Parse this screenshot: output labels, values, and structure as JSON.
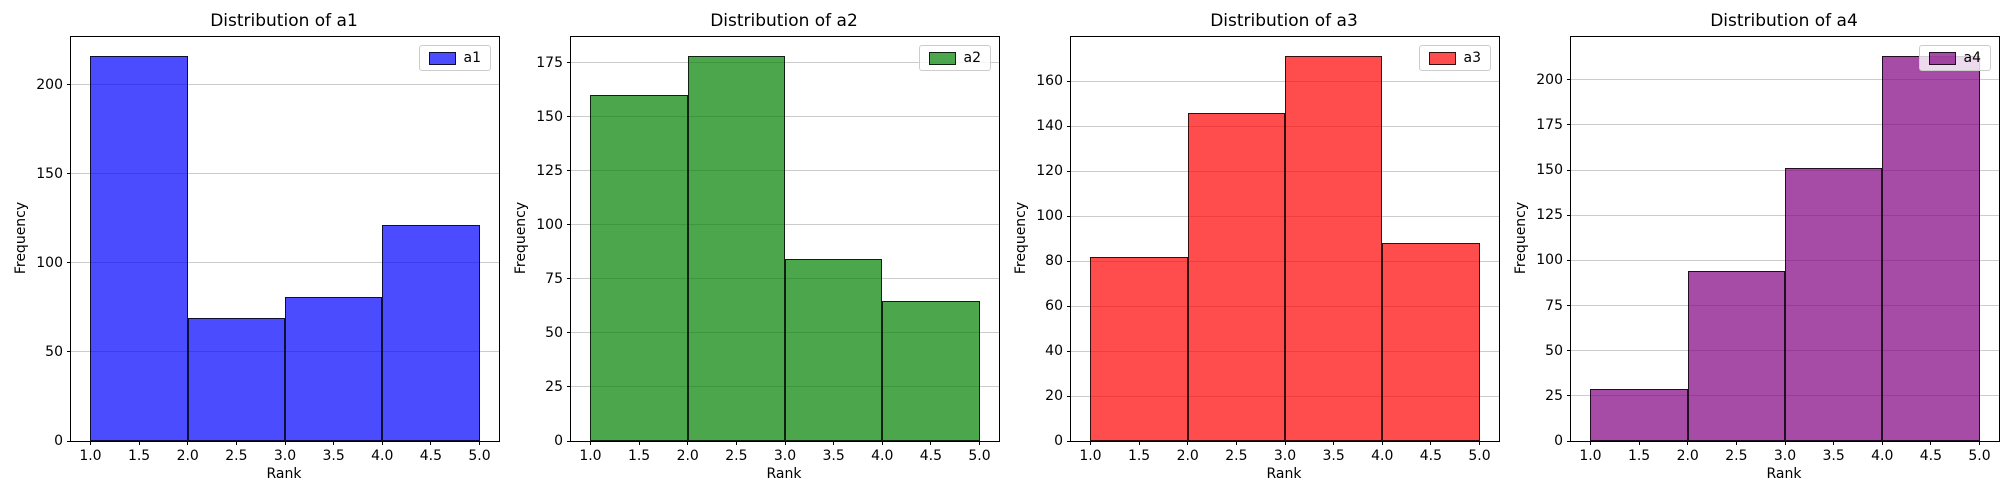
{
  "figure": {
    "background_color": "#ffffff",
    "spine_color": "#000000",
    "grid_color": "#cccccc",
    "text_color": "#000000"
  },
  "shared": {
    "xlabel": "Rank",
    "ylabel": "Frequency",
    "xtick_labels": [
      "1.0",
      "1.5",
      "2.0",
      "2.5",
      "3.0",
      "3.5",
      "4.0",
      "4.5",
      "5.0"
    ],
    "xlim": [
      0.8,
      5.2
    ],
    "grid": "horizontal-only",
    "legend_position": "upper right"
  },
  "chart_data": [
    {
      "type": "bar",
      "subtype": "histogram",
      "title": "Distribution of a1",
      "legend_label": "a1",
      "xlabel": "Rank",
      "ylabel": "Frequency",
      "color_hex": "#4d4dff",
      "fill_rgba": "rgba(0,0,255,0.7)",
      "edge_rgba": "rgba(0,0,0,0.8)",
      "bin_edges": [
        1,
        2,
        3,
        4,
        5
      ],
      "counts": [
        216,
        69,
        81,
        121
      ],
      "yticks": [
        0,
        50,
        100,
        150,
        200
      ],
      "ylim": [
        0,
        226.8
      ]
    },
    {
      "type": "bar",
      "subtype": "histogram",
      "title": "Distribution of a2",
      "legend_label": "a2",
      "xlabel": "Rank",
      "ylabel": "Frequency",
      "color_hex": "#4da64d",
      "fill_rgba": "rgba(0,128,0,0.7)",
      "edge_rgba": "rgba(0,0,0,0.8)",
      "bin_edges": [
        1,
        2,
        3,
        4,
        5
      ],
      "counts": [
        160,
        178,
        84,
        65
      ],
      "yticks": [
        0,
        25,
        50,
        75,
        100,
        125,
        150,
        175
      ],
      "ylim": [
        0,
        186.9
      ]
    },
    {
      "type": "bar",
      "subtype": "histogram",
      "title": "Distribution of a3",
      "legend_label": "a3",
      "xlabel": "Rank",
      "ylabel": "Frequency",
      "color_hex": "#ff4d4d",
      "fill_rgba": "rgba(255,0,0,0.7)",
      "edge_rgba": "rgba(0,0,0,0.8)",
      "bin_edges": [
        1,
        2,
        3,
        4,
        5
      ],
      "counts": [
        82,
        146,
        171,
        88
      ],
      "yticks": [
        0,
        20,
        40,
        60,
        80,
        100,
        120,
        140,
        160
      ],
      "ylim": [
        0,
        179.6
      ]
    },
    {
      "type": "bar",
      "subtype": "histogram",
      "title": "Distribution of a4",
      "legend_label": "a4",
      "xlabel": "Rank",
      "ylabel": "Frequency",
      "color_hex": "#a64da6",
      "fill_rgba": "rgba(128,0,128,0.7)",
      "edge_rgba": "rgba(0,0,0,0.8)",
      "bin_edges": [
        1,
        2,
        3,
        4,
        5
      ],
      "counts": [
        29,
        94,
        151,
        213
      ],
      "yticks": [
        0,
        25,
        50,
        75,
        100,
        125,
        150,
        175,
        200
      ],
      "ylim": [
        0,
        223.7
      ]
    }
  ]
}
